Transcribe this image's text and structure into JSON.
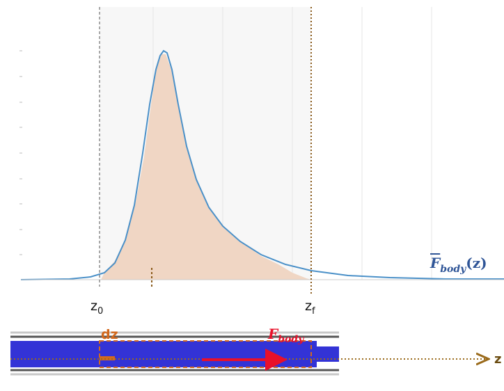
{
  "labels": {
    "z0": {
      "base": "z",
      "sub": "0"
    },
    "zf": {
      "base": "z",
      "sub": "f"
    },
    "force_curve": {
      "base": "F",
      "sub": "body",
      "suffix": "(z)"
    },
    "dz": "dz",
    "force": {
      "base": "F",
      "sub": "body"
    },
    "axis": "z"
  }
}
